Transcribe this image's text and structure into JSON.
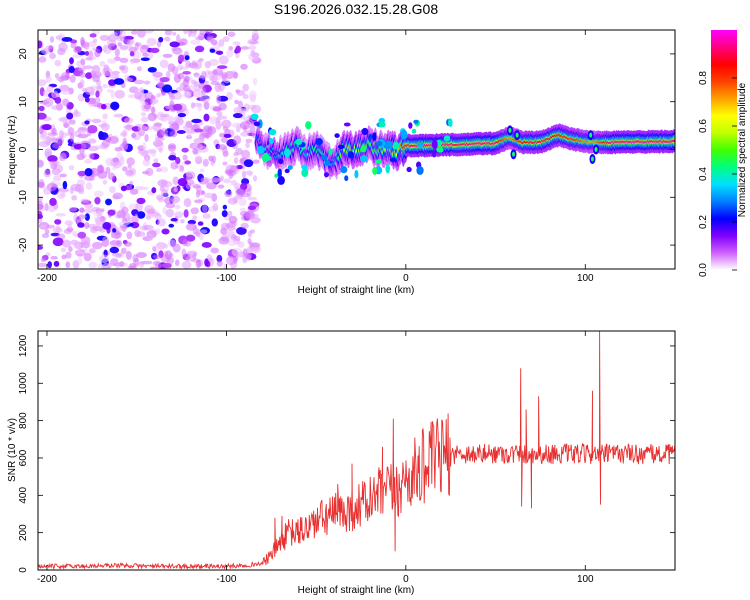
{
  "figure_title": "S196.2026.032.15.28.G08",
  "chart_data": [
    {
      "type": "heatmap",
      "name": "spectrogram",
      "title": "S196.2026.032.15.28.G08",
      "xlabel": "Height of straight line (km)",
      "ylabel": "Frequency (Hz)",
      "xlim": [
        -205,
        150
      ],
      "ylim": [
        -25,
        25
      ],
      "xticks": [
        -200,
        -100,
        0,
        100
      ],
      "yticks": [
        -20,
        -10,
        0,
        10,
        20
      ],
      "colorbar": {
        "label": "Normalized spectral amplitude",
        "range": [
          0.0,
          1.0
        ],
        "ticks": [
          0.0,
          0.2,
          0.4,
          0.6,
          0.8
        ],
        "tick_labels": [
          "0.0",
          "0.2",
          "0.4",
          "0.6",
          "0.8"
        ],
        "colormap": [
          "#ffffff",
          "#d060ff",
          "#8000ff",
          "#0000ff",
          "#0080ff",
          "#00e0ff",
          "#00ff80",
          "#40ff00",
          "#c0ff00",
          "#ffff00",
          "#ffa000",
          "#ff4000",
          "#ff0000",
          "#ff0080",
          "#ff00ff"
        ]
      },
      "noise_region": {
        "x_range": [
          -205,
          -83
        ],
        "freq_range": [
          -25,
          25
        ],
        "amplitude": 0.12
      },
      "signal_ridge": {
        "points": [
          {
            "x": -83,
            "freq": 2,
            "amp": 0.25
          },
          {
            "x": -78,
            "freq": 0,
            "amp": 0.35
          },
          {
            "x": -72,
            "freq": -1,
            "amp": 0.3
          },
          {
            "x": -66,
            "freq": 0,
            "amp": 0.4
          },
          {
            "x": -60,
            "freq": 1,
            "amp": 0.45
          },
          {
            "x": -55,
            "freq": -1,
            "amp": 0.35
          },
          {
            "x": -50,
            "freq": 0.5,
            "amp": 0.45
          },
          {
            "x": -45,
            "freq": -2,
            "amp": 0.4
          },
          {
            "x": -40,
            "freq": -3,
            "amp": 0.3
          },
          {
            "x": -35,
            "freq": 0,
            "amp": 0.55
          },
          {
            "x": -30,
            "freq": 0,
            "amp": 0.6
          },
          {
            "x": -25,
            "freq": 0.5,
            "amp": 0.55
          },
          {
            "x": -20,
            "freq": 1,
            "amp": 0.5
          },
          {
            "x": -15,
            "freq": 0,
            "amp": 0.5
          },
          {
            "x": -10,
            "freq": 0.5,
            "amp": 0.55
          },
          {
            "x": -5,
            "freq": -0.5,
            "amp": 0.6
          },
          {
            "x": 0,
            "freq": 0.8,
            "amp": 0.9
          },
          {
            "x": 10,
            "freq": 0.8,
            "amp": 0.95
          },
          {
            "x": 20,
            "freq": 1,
            "amp": 0.95
          },
          {
            "x": 30,
            "freq": 1,
            "amp": 0.9
          },
          {
            "x": 40,
            "freq": 1.2,
            "amp": 0.95
          },
          {
            "x": 50,
            "freq": 1.3,
            "amp": 0.95
          },
          {
            "x": 58,
            "freq": 2.5,
            "amp": 0.7
          },
          {
            "x": 65,
            "freq": 1.5,
            "amp": 0.85
          },
          {
            "x": 75,
            "freq": 1.5,
            "amp": 0.9
          },
          {
            "x": 85,
            "freq": 3,
            "amp": 0.85
          },
          {
            "x": 95,
            "freq": 2,
            "amp": 0.8
          },
          {
            "x": 105,
            "freq": 1.5,
            "amp": 0.7
          },
          {
            "x": 115,
            "freq": 1.5,
            "amp": 0.95
          },
          {
            "x": 130,
            "freq": 1.6,
            "amp": 0.95
          },
          {
            "x": 150,
            "freq": 1.7,
            "amp": 0.95
          }
        ]
      }
    },
    {
      "type": "line",
      "name": "snr",
      "xlabel": "Height of straight line (km)",
      "ylabel": "SNR (10 * v/v)",
      "xlim": [
        -205,
        150
      ],
      "ylim": [
        0,
        1280
      ],
      "xticks": [
        -200,
        -100,
        0,
        100
      ],
      "yticks": [
        0,
        200,
        400,
        600,
        800,
        1000,
        1200
      ],
      "line_color": "#e83030",
      "series": [
        {
          "name": "SNR",
          "x": [
            -205,
            -180,
            -160,
            -140,
            -120,
            -100,
            -90,
            -80,
            -75,
            -70,
            -65,
            -60,
            -55,
            -50,
            -45,
            -40,
            -35,
            -30,
            -25,
            -20,
            -15,
            -10,
            -5,
            0,
            5,
            10,
            15,
            20,
            25,
            30,
            40,
            50,
            60,
            63,
            65,
            70,
            75,
            80,
            85,
            90,
            95,
            100,
            105,
            110,
            112,
            120,
            130,
            140,
            150
          ],
          "y": [
            20,
            20,
            25,
            20,
            20,
            20,
            25,
            35,
            80,
            150,
            200,
            200,
            230,
            260,
            280,
            300,
            310,
            330,
            350,
            370,
            400,
            420,
            430,
            480,
            520,
            560,
            590,
            610,
            620,
            625,
            620,
            625,
            620,
            620,
            620,
            625,
            620,
            620,
            625,
            620,
            620,
            620,
            625,
            620,
            620,
            625,
            620,
            620,
            620
          ]
        }
      ],
      "spikes": [
        {
          "x": -73,
          "y": 280
        },
        {
          "x": -69,
          "y": 290
        },
        {
          "x": -38,
          "y": 460
        },
        {
          "x": -30,
          "y": 570
        },
        {
          "x": -25,
          "y": 390
        },
        {
          "x": -13,
          "y": 660
        },
        {
          "x": -7,
          "y": 810
        },
        {
          "x": -6,
          "y": 100
        },
        {
          "x": 64,
          "y": 1080
        },
        {
          "x": 64.5,
          "y": 340
        },
        {
          "x": 67,
          "y": 860
        },
        {
          "x": 70,
          "y": 330
        },
        {
          "x": 74,
          "y": 930
        },
        {
          "x": 104,
          "y": 960
        },
        {
          "x": 108,
          "y": 1280
        },
        {
          "x": 108.5,
          "y": 350
        }
      ]
    }
  ]
}
